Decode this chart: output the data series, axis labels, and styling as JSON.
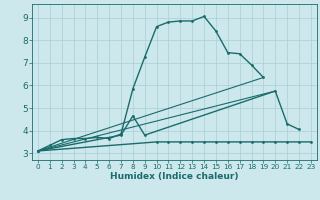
{
  "xlabel": "Humidex (Indice chaleur)",
  "bg_color": "#cce8ec",
  "line_color": "#1a6b6b",
  "grid_color": "#aacfd4",
  "xlim": [
    -0.5,
    23.5
  ],
  "ylim": [
    2.7,
    9.6
  ],
  "yticks": [
    3,
    4,
    5,
    6,
    7,
    8,
    9
  ],
  "xticks": [
    0,
    1,
    2,
    3,
    4,
    5,
    6,
    7,
    8,
    9,
    10,
    11,
    12,
    13,
    14,
    15,
    16,
    17,
    18,
    19,
    20,
    21,
    22,
    23
  ],
  "curve1_x": [
    0,
    1,
    2,
    3,
    4,
    5,
    6,
    7,
    8,
    9,
    10,
    11,
    12,
    13,
    14,
    15,
    16,
    17,
    18,
    19
  ],
  "curve1_y": [
    3.1,
    3.35,
    3.6,
    3.65,
    3.65,
    3.7,
    3.65,
    3.85,
    5.85,
    7.25,
    8.6,
    8.8,
    8.85,
    8.85,
    9.05,
    8.4,
    7.45,
    7.4,
    6.9,
    6.35
  ],
  "curve2_x": [
    0,
    7,
    8,
    9,
    20,
    21,
    22
  ],
  "curve2_y": [
    3.1,
    3.8,
    4.65,
    3.8,
    5.75,
    4.3,
    4.05
  ],
  "curve3_x": [
    0,
    10,
    11,
    12,
    13,
    14,
    15,
    16,
    17,
    18,
    19,
    20,
    21,
    22,
    23
  ],
  "curve3_y": [
    3.1,
    3.5,
    3.5,
    3.5,
    3.5,
    3.5,
    3.5,
    3.5,
    3.5,
    3.5,
    3.5,
    3.5,
    3.5,
    3.5,
    3.5
  ],
  "trend1_x": [
    0,
    19
  ],
  "trend1_y": [
    3.1,
    6.35
  ],
  "trend2_x": [
    0,
    20
  ],
  "trend2_y": [
    3.1,
    5.75
  ]
}
